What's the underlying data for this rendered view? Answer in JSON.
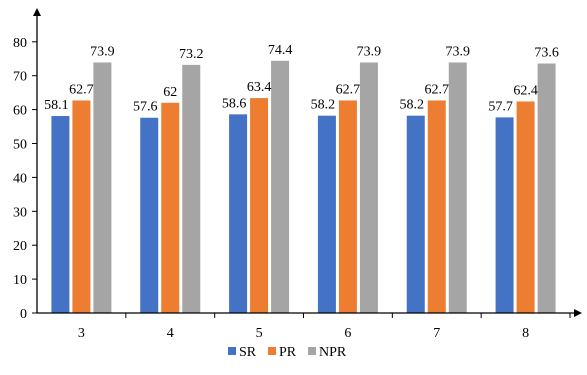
{
  "chart_data": {
    "type": "bar",
    "categories": [
      "3",
      "4",
      "5",
      "6",
      "7",
      "8"
    ],
    "series": [
      {
        "name": "SR",
        "color": "#4472C4",
        "values": [
          58.1,
          57.6,
          58.6,
          58.2,
          58.2,
          57.7
        ],
        "labels": [
          "58.1",
          "57.6",
          "58.6",
          "58.2",
          "58.2",
          "57.7"
        ]
      },
      {
        "name": "PR",
        "color": "#ED7D31",
        "values": [
          62.7,
          62,
          63.4,
          62.7,
          62.7,
          62.4
        ],
        "labels": [
          "62.7",
          "62",
          "63.4",
          "62.7",
          "62.7",
          "62.4"
        ]
      },
      {
        "name": "NPR",
        "color": "#A5A5A5",
        "values": [
          73.9,
          73.2,
          74.4,
          73.9,
          73.9,
          73.6
        ],
        "labels": [
          "73.9",
          "73.2",
          "74.4",
          "73.9",
          "73.9",
          "73.6"
        ]
      }
    ],
    "yticks": [
      "0",
      "10",
      "20",
      "30",
      "40",
      "50",
      "60",
      "70",
      "80"
    ],
    "ylim": [
      0,
      90
    ],
    "title": "",
    "xlabel": "",
    "ylabel": "",
    "grid": false,
    "legend_position": "bottom-center"
  }
}
